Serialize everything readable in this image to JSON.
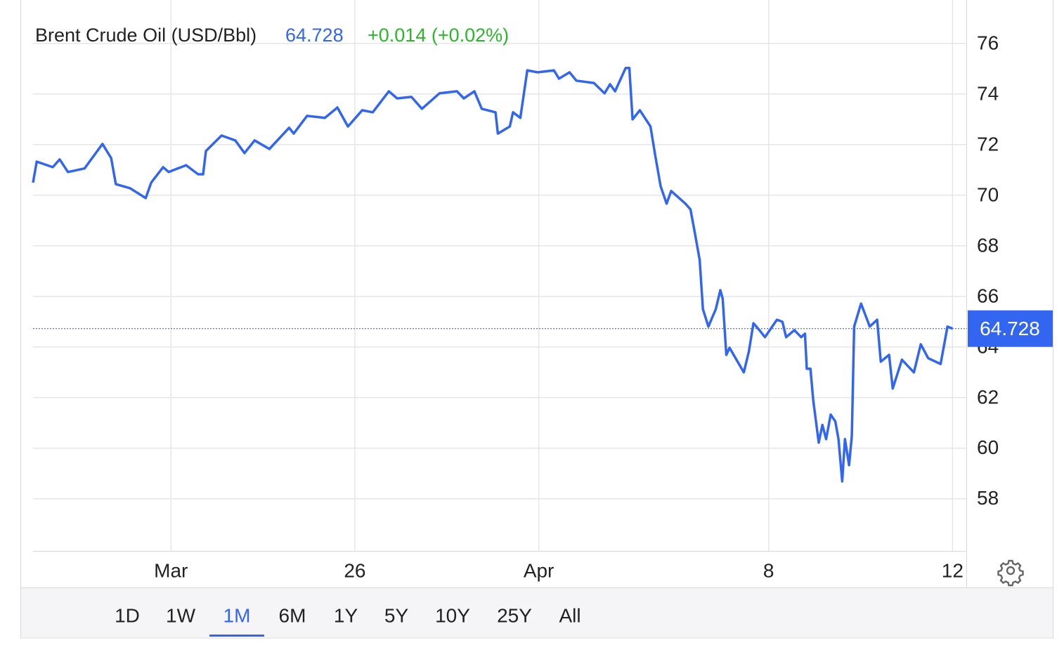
{
  "chart_data": {
    "type": "line",
    "title": "Brent Crude Oil (USD/Bbl)",
    "last_price": 64.728,
    "change": "+0.014 (+0.02%)",
    "x": [
      0,
      0.08,
      0.43,
      0.58,
      0.76,
      1.12,
      1.51,
      1.7,
      1.8,
      2.11,
      2.45,
      2.57,
      2.83,
      2.95,
      3.33,
      3.59,
      3.7,
      3.76,
      4.1,
      4.4,
      4.6,
      4.82,
      5.14,
      5.57,
      5.67,
      5.96,
      6.35,
      6.62,
      6.85,
      7.16,
      7.39,
      7.74,
      7.92,
      8.23,
      8.46,
      8.84,
      9.22,
      9.37,
      9.6,
      9.76,
      10.06,
      10.11,
      10.37,
      10.44,
      10.6,
      10.75,
      10.98,
      11.33,
      11.44,
      11.67,
      11.82,
      12.2,
      12.43,
      12.55,
      12.66,
      12.89,
      12.97,
      13.04,
      13.2,
      13.43,
      13.53,
      13.65,
      13.78,
      13.88,
      14.19,
      14.3,
      14.39,
      14.5,
      14.57,
      14.69,
      14.85,
      14.95,
      15.0,
      15.08,
      15.15,
      15.37,
      15.46,
      15.57,
      15.67,
      15.8,
      15.92,
      16.18,
      16.3,
      16.38,
      16.56,
      16.71,
      16.79,
      16.83,
      16.91,
      16.97,
      17.09,
      17.17,
      17.25,
      17.35,
      17.45,
      17.52,
      17.6,
      17.66,
      17.75,
      17.81,
      17.86,
      18.01,
      18.2,
      18.36,
      18.44,
      18.62,
      18.7,
      18.9,
      19.16,
      19.31,
      19.47,
      19.74,
      19.89,
      20.0
    ],
    "series": [
      {
        "name": "Brent Crude Oil (USD/Bbl)",
        "color": "#3366f0",
        "values": [
          70.5,
          71.33,
          71.11,
          71.42,
          70.92,
          71.06,
          72.03,
          71.47,
          70.44,
          70.28,
          69.89,
          70.5,
          71.11,
          70.92,
          71.19,
          70.83,
          70.83,
          71.75,
          72.36,
          72.17,
          71.67,
          72.17,
          71.83,
          72.67,
          72.44,
          73.14,
          73.06,
          73.47,
          72.72,
          73.36,
          73.28,
          74.11,
          73.83,
          73.89,
          73.42,
          74.03,
          74.11,
          73.83,
          74.11,
          73.42,
          73.28,
          72.44,
          72.72,
          73.28,
          73.06,
          74.94,
          74.86,
          74.94,
          74.61,
          74.86,
          74.53,
          74.44,
          74.03,
          74.39,
          74.11,
          75.03,
          75.03,
          73.0,
          73.36,
          72.72,
          71.61,
          70.36,
          69.67,
          70.17,
          69.67,
          69.44,
          68.56,
          67.44,
          65.5,
          64.81,
          65.5,
          66.25,
          65.92,
          63.69,
          63.97,
          63.28,
          63.0,
          63.83,
          64.94,
          64.67,
          64.39,
          65.08,
          65.0,
          64.39,
          64.67,
          64.39,
          64.53,
          63.14,
          63.14,
          61.89,
          60.22,
          60.92,
          60.36,
          61.33,
          61.06,
          60.36,
          58.69,
          60.36,
          59.33,
          60.5,
          64.81,
          65.72,
          64.81,
          65.08,
          63.42,
          63.69,
          62.36,
          63.5,
          63.0,
          64.11,
          63.56,
          63.33,
          64.81,
          64.73
        ]
      }
    ],
    "xlim": [
      0,
      20.3
    ],
    "xticks": [
      {
        "value": 3,
        "label": "Mar"
      },
      {
        "value": 7,
        "label": "26"
      },
      {
        "value": 11,
        "label": "Apr"
      },
      {
        "value": 16,
        "label": "8"
      },
      {
        "value": 20,
        "label": "12"
      }
    ],
    "ylim": [
      55.94,
      77.72
    ],
    "yticks": [
      58,
      60,
      62,
      64,
      66,
      68,
      70,
      72,
      74,
      76
    ],
    "grid": true,
    "change_color": "#2db52d",
    "ranges": [
      "1D",
      "1W",
      "1M",
      "6M",
      "1Y",
      "5Y",
      "10Y",
      "25Y",
      "All"
    ],
    "active_range": 2
  }
}
